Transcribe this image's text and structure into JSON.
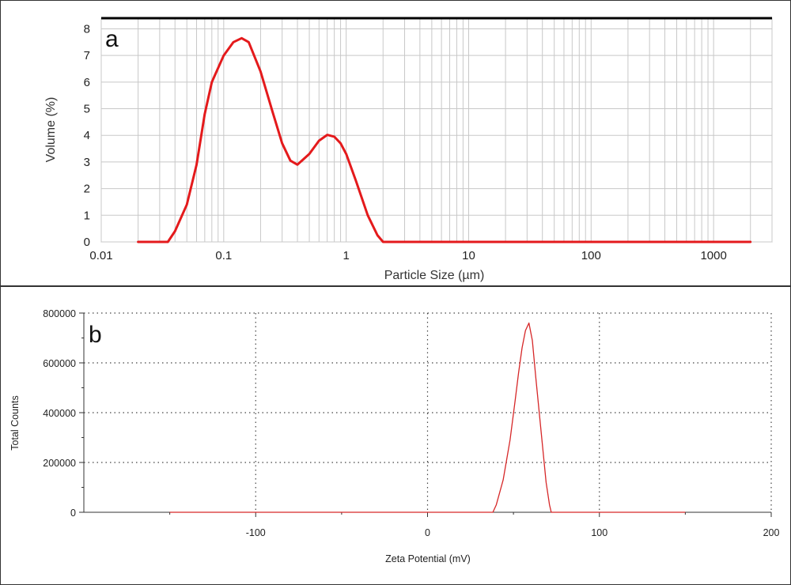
{
  "chart_data": [
    {
      "type": "line",
      "panel_label": "a",
      "title": "",
      "xlabel": "Particle Size (µm)",
      "ylabel": "Volume (%)",
      "xscale": "log",
      "xlim": [
        0.01,
        3000
      ],
      "ylim": [
        0,
        8.4
      ],
      "xticks": [
        0.01,
        0.1,
        1,
        10,
        100,
        1000
      ],
      "xtick_labels": [
        "0.01",
        "0.1",
        "1",
        "10",
        "100",
        "1000"
      ],
      "yticks": [
        0,
        1,
        2,
        3,
        4,
        5,
        6,
        7,
        8
      ],
      "ytick_labels": [
        "0",
        "1",
        "2",
        "3",
        "4",
        "5",
        "6",
        "7",
        "8"
      ],
      "grid": true,
      "colors": {
        "series": "#e41a1c",
        "grid": "#c8c8c8",
        "top_line": "#000000"
      },
      "series": [
        {
          "x": [
            0.02,
            0.035,
            0.04,
            0.05,
            0.06,
            0.07,
            0.08,
            0.1,
            0.12,
            0.14,
            0.16,
            0.2,
            0.25,
            0.3,
            0.35,
            0.4,
            0.5,
            0.6,
            0.7,
            0.8,
            0.9,
            1.0,
            1.2,
            1.5,
            1.8,
            2.0,
            2000
          ],
          "y": [
            0,
            0,
            0.4,
            1.4,
            2.9,
            4.8,
            6.0,
            7.0,
            7.5,
            7.65,
            7.5,
            6.4,
            4.9,
            3.7,
            3.05,
            2.9,
            3.3,
            3.8,
            4.02,
            3.95,
            3.7,
            3.3,
            2.3,
            1.0,
            0.25,
            0,
            0
          ]
        }
      ]
    },
    {
      "type": "line",
      "panel_label": "b",
      "title": "",
      "xlabel": "Zeta Potential (mV)",
      "ylabel": "Total Counts",
      "xlim": [
        -200,
        200
      ],
      "ylim": [
        0,
        800000
      ],
      "xticks": [
        -100,
        0,
        100,
        200
      ],
      "xtick_labels": [
        "-100",
        "0",
        "100",
        "200"
      ],
      "yticks": [
        0,
        200000,
        400000,
        600000,
        800000
      ],
      "ytick_labels": [
        "0",
        "200000",
        "400000",
        "600000",
        "800000"
      ],
      "grid": true,
      "grid_style": "dotted",
      "colors": {
        "series": "#d62728",
        "grid": "#444444"
      },
      "series": [
        {
          "x": [
            -150,
            38,
            40,
            44,
            48,
            51,
            53,
            55,
            57,
            59,
            61,
            63,
            66,
            69,
            71,
            72,
            150
          ],
          "y": [
            0,
            0,
            30000,
            130000,
            290000,
            450000,
            560000,
            660000,
            730000,
            760000,
            690000,
            540000,
            330000,
            120000,
            30000,
            0,
            0
          ]
        }
      ]
    }
  ]
}
